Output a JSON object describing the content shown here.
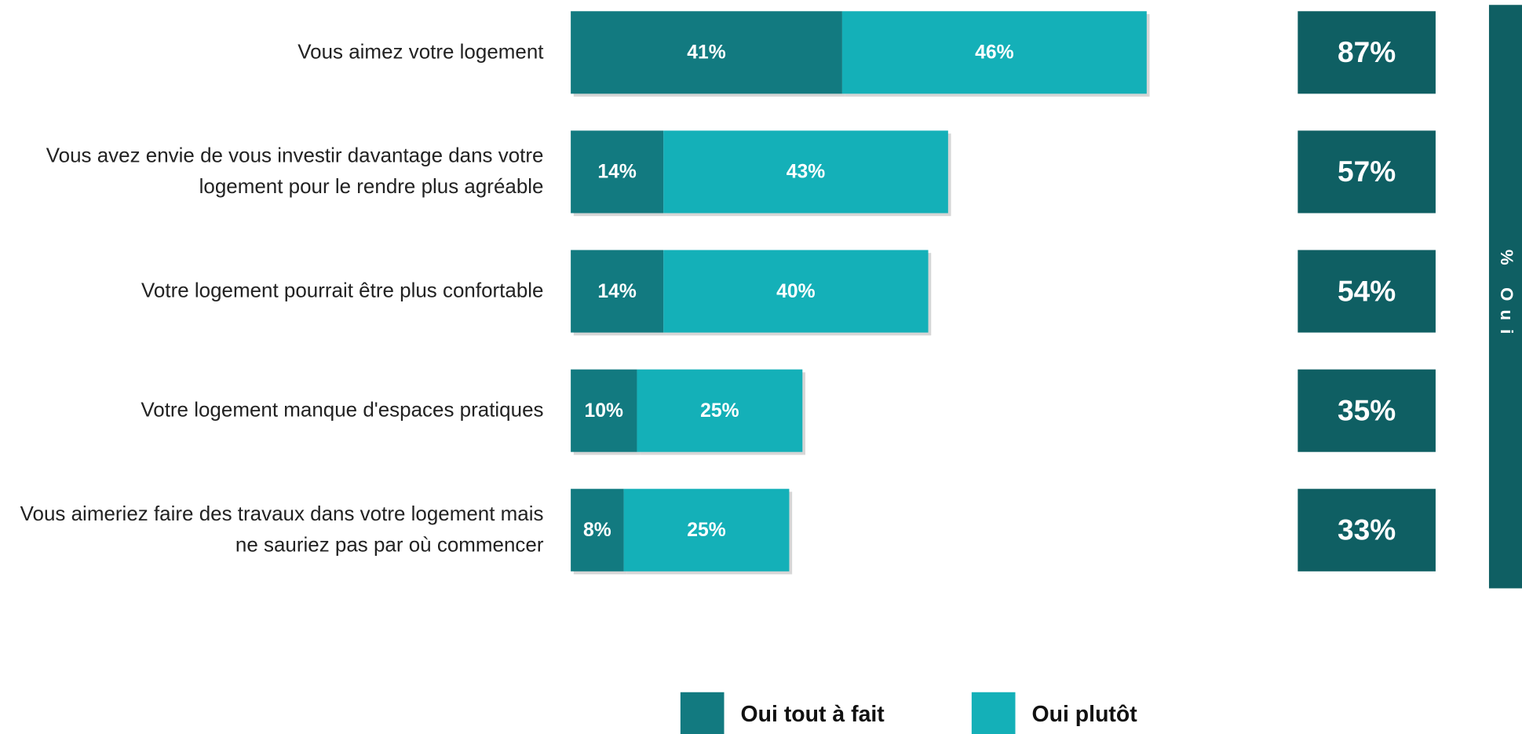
{
  "chart_data": {
    "type": "stacked-bar-horizontal",
    "categories": [
      "Vous aimez votre logement",
      "Vous avez envie de vous investir davantage dans votre logement pour le rendre plus agréable",
      "Votre logement pourrait être plus confortable",
      "Votre logement manque d'espaces pratiques",
      "Vous aimeriez faire des travaux dans votre logement mais ne sauriez pas par où commencer"
    ],
    "series": [
      {
        "name": "Oui tout à fait",
        "color": "#127a80",
        "values": [
          41,
          14,
          14,
          10,
          8
        ],
        "value_labels": [
          "41%",
          "14%",
          "14%",
          "10%",
          "8%"
        ]
      },
      {
        "name": "Oui plutôt",
        "color": "#14b0b8",
        "values": [
          46,
          43,
          40,
          25,
          25
        ],
        "value_labels": [
          "46%",
          "43%",
          "40%",
          "25%",
          "25%"
        ]
      }
    ],
    "totals": [
      87,
      57,
      54,
      35,
      33
    ],
    "total_labels": [
      "87%",
      "57%",
      "54%",
      "35%",
      "33%"
    ],
    "total_color": "#0f5f63",
    "side_label": "% Oui",
    "xlim": [
      0,
      100
    ]
  }
}
